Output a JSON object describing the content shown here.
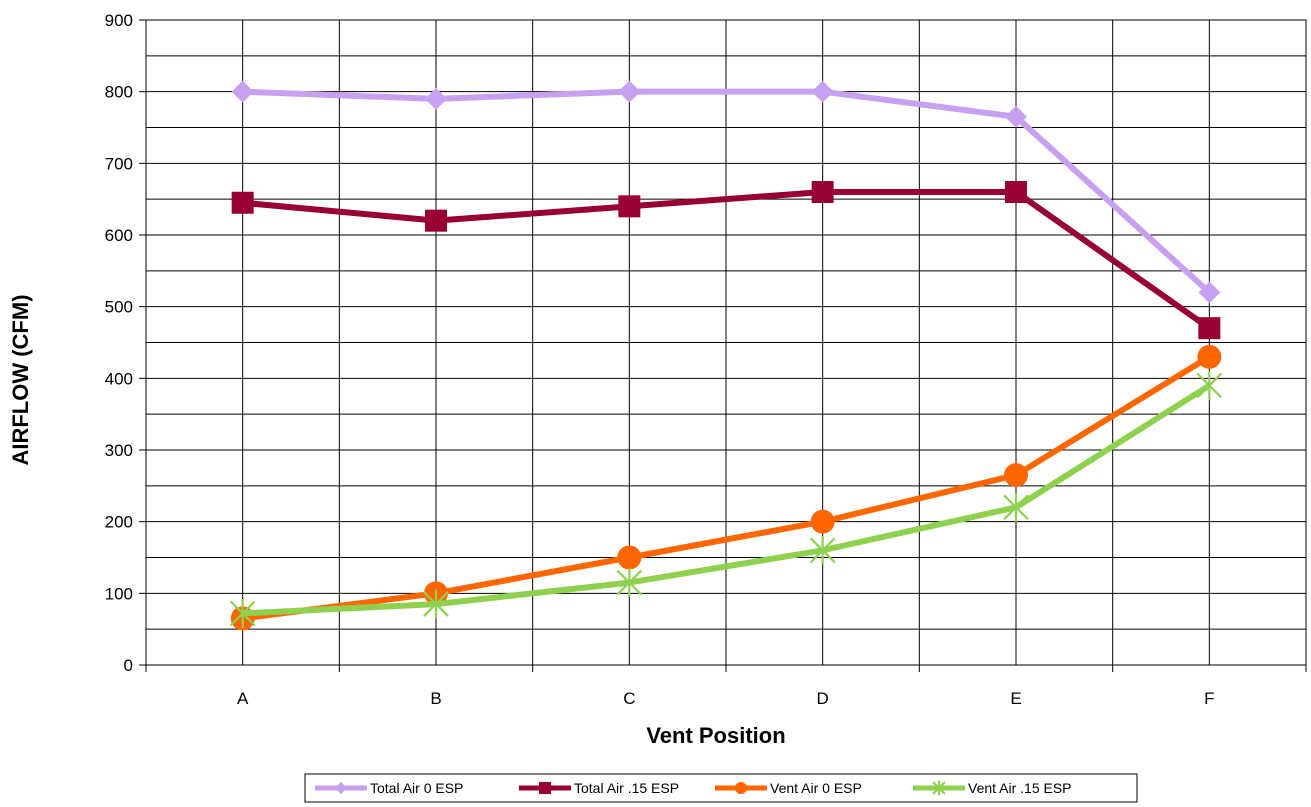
{
  "chart_data": {
    "type": "line",
    "categories": [
      "A",
      "B",
      "C",
      "D",
      "E",
      "F"
    ],
    "xlabel": "Vent Position",
    "ylabel": "AIRFLOW (CFM)",
    "ylim": [
      0,
      900
    ],
    "yticks": [
      0,
      100,
      200,
      300,
      400,
      500,
      600,
      700,
      800,
      900
    ],
    "grid": true,
    "legend_position": "bottom",
    "series": [
      {
        "name": "Total Air 0 ESP",
        "color": "#c8a0f0",
        "marker": "diamond",
        "values": [
          800,
          790,
          800,
          800,
          765,
          520
        ]
      },
      {
        "name": "Total Air .15 ESP",
        "color": "#990033",
        "marker": "square",
        "values": [
          645,
          620,
          640,
          660,
          660,
          470
        ]
      },
      {
        "name": "Vent Air 0 ESP",
        "color": "#ff6600",
        "marker": "circle",
        "values": [
          65,
          100,
          150,
          200,
          265,
          430
        ]
      },
      {
        "name": "Vent Air .15 ESP",
        "color": "#8fd14f",
        "marker": "star",
        "values": [
          72,
          85,
          115,
          160,
          220,
          390
        ]
      }
    ]
  }
}
